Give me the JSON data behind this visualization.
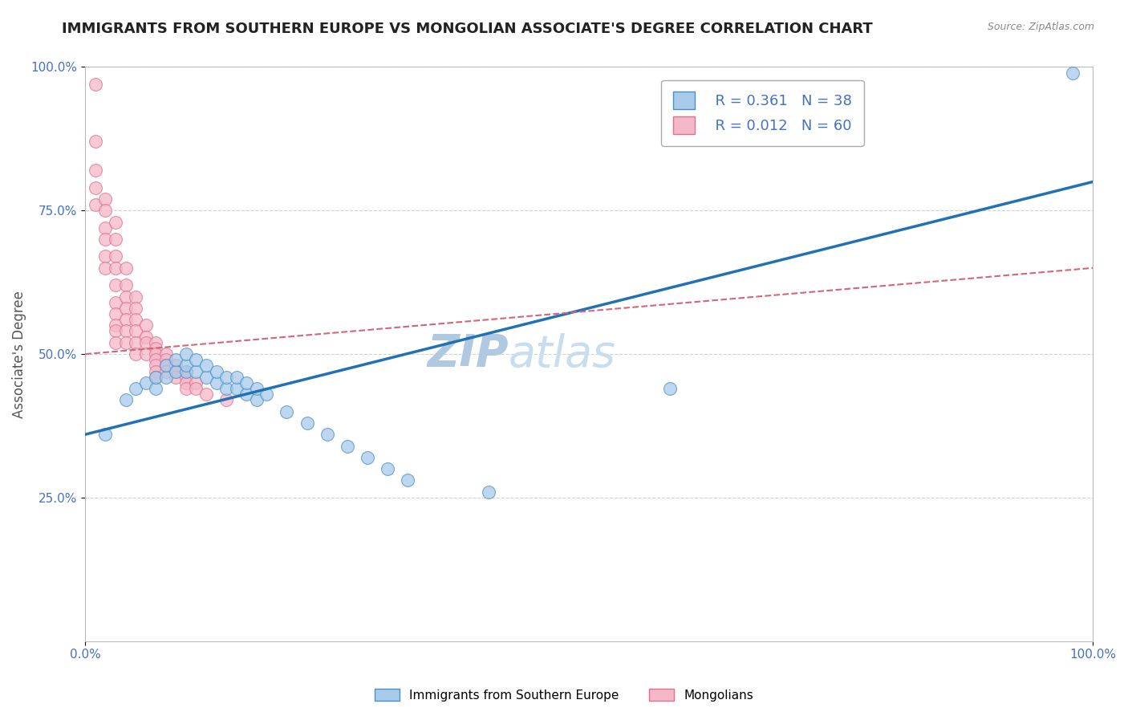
{
  "title": "IMMIGRANTS FROM SOUTHERN EUROPE VS MONGOLIAN ASSOCIATE'S DEGREE CORRELATION CHART",
  "source_text": "Source: ZipAtlas.com",
  "ylabel": "Associate's Degree",
  "xlabel": "",
  "xlim": [
    0,
    1
  ],
  "ylim": [
    0,
    1
  ],
  "xtick_labels": [
    "0.0%",
    "100.0%"
  ],
  "ytick_labels": [
    "25.0%",
    "50.0%",
    "75.0%",
    "100.0%"
  ],
  "ytick_positions": [
    0.25,
    0.5,
    0.75,
    1.0
  ],
  "legend_labels": [
    "Immigrants from Southern Europe",
    "Mongolians"
  ],
  "legend_r_values": [
    "R = 0.361",
    "R = 0.012"
  ],
  "legend_n_values": [
    "N = 38",
    "N = 60"
  ],
  "blue_color": "#a8caeb",
  "pink_color": "#f4b8c8",
  "blue_edge_color": "#4a90c4",
  "pink_edge_color": "#e07090",
  "blue_line_color": "#2171b5",
  "pink_line_color": "#d4657a",
  "watermark": "ZIPatlas",
  "blue_scatter_x": [
    0.02,
    0.04,
    0.05,
    0.06,
    0.07,
    0.07,
    0.08,
    0.08,
    0.09,
    0.09,
    0.1,
    0.1,
    0.1,
    0.11,
    0.11,
    0.12,
    0.12,
    0.13,
    0.13,
    0.14,
    0.14,
    0.15,
    0.15,
    0.16,
    0.16,
    0.17,
    0.17,
    0.18,
    0.2,
    0.22,
    0.24,
    0.26,
    0.28,
    0.3,
    0.32,
    0.4,
    0.58,
    0.98
  ],
  "blue_scatter_y": [
    0.36,
    0.42,
    0.44,
    0.45,
    0.44,
    0.46,
    0.46,
    0.48,
    0.47,
    0.49,
    0.47,
    0.48,
    0.5,
    0.47,
    0.49,
    0.46,
    0.48,
    0.45,
    0.47,
    0.44,
    0.46,
    0.44,
    0.46,
    0.43,
    0.45,
    0.42,
    0.44,
    0.43,
    0.4,
    0.38,
    0.36,
    0.34,
    0.32,
    0.3,
    0.28,
    0.26,
    0.44,
    0.99
  ],
  "pink_scatter_x": [
    0.01,
    0.01,
    0.01,
    0.01,
    0.01,
    0.02,
    0.02,
    0.02,
    0.02,
    0.02,
    0.02,
    0.03,
    0.03,
    0.03,
    0.03,
    0.03,
    0.03,
    0.03,
    0.03,
    0.03,
    0.03,
    0.04,
    0.04,
    0.04,
    0.04,
    0.04,
    0.04,
    0.04,
    0.05,
    0.05,
    0.05,
    0.05,
    0.05,
    0.05,
    0.06,
    0.06,
    0.06,
    0.06,
    0.07,
    0.07,
    0.07,
    0.07,
    0.07,
    0.07,
    0.07,
    0.08,
    0.08,
    0.08,
    0.08,
    0.09,
    0.09,
    0.09,
    0.1,
    0.1,
    0.1,
    0.1,
    0.11,
    0.11,
    0.12,
    0.14
  ],
  "pink_scatter_y": [
    0.97,
    0.87,
    0.82,
    0.79,
    0.76,
    0.77,
    0.75,
    0.72,
    0.7,
    0.67,
    0.65,
    0.73,
    0.7,
    0.67,
    0.65,
    0.62,
    0.59,
    0.57,
    0.55,
    0.54,
    0.52,
    0.65,
    0.62,
    0.6,
    0.58,
    0.56,
    0.54,
    0.52,
    0.6,
    0.58,
    0.56,
    0.54,
    0.52,
    0.5,
    0.55,
    0.53,
    0.52,
    0.5,
    0.52,
    0.51,
    0.5,
    0.49,
    0.48,
    0.47,
    0.46,
    0.5,
    0.49,
    0.48,
    0.47,
    0.48,
    0.47,
    0.46,
    0.47,
    0.46,
    0.45,
    0.44,
    0.45,
    0.44,
    0.43,
    0.42
  ],
  "blue_line_x0": 0.0,
  "blue_line_y0": 0.36,
  "blue_line_x1": 1.0,
  "blue_line_y1": 0.8,
  "pink_line_x0": 0.0,
  "pink_line_y0": 0.5,
  "pink_line_x1": 1.0,
  "pink_line_y1": 0.65,
  "title_fontsize": 13,
  "axis_label_fontsize": 12,
  "tick_fontsize": 11,
  "watermark_fontsize": 40,
  "watermark_color": "#ccdded",
  "background_color": "#ffffff",
  "grid_color": "#cccccc"
}
